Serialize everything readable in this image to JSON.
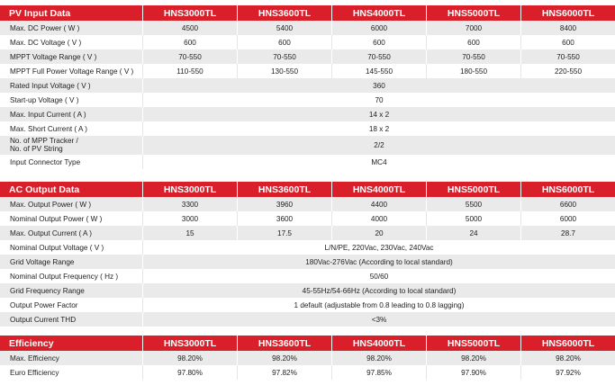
{
  "pv_input": {
    "title": "PV Input Data",
    "models": [
      "HNS3000TL",
      "HNS3600TL",
      "HNS4000TL",
      "HNS5000TL",
      "HNS6000TL"
    ],
    "rows": [
      {
        "label": "Max. DC Power ( W )",
        "values": [
          "4500",
          "5400",
          "6000",
          "7000",
          "8400"
        ]
      },
      {
        "label": "Max. DC Voltage ( V )",
        "values": [
          "600",
          "600",
          "600",
          "600",
          "600"
        ]
      },
      {
        "label": "MPPT Voltage Range ( V )",
        "values": [
          "70-550",
          "70-550",
          "70-550",
          "70-550",
          "70-550"
        ]
      },
      {
        "label": "MPPT Full Power Voltage Range ( V )",
        "values": [
          "110-550",
          "130-550",
          "145-550",
          "180-550",
          "220-550"
        ]
      },
      {
        "label": "Rated Input Voltage ( V )",
        "value": "360"
      },
      {
        "label": "Start-up Voltage ( V )",
        "value": "70"
      },
      {
        "label": "Max. Input Current ( A )",
        "value": "14 x 2"
      },
      {
        "label": "Max. Short Current ( A )",
        "value": "18 x 2"
      },
      {
        "label_line1": "No. of MPP Tracker /",
        "label_line2": "No. of PV String",
        "value": "2/2"
      },
      {
        "label": "Input Connector Type",
        "value": "MC4"
      }
    ]
  },
  "ac_output": {
    "title": "AC Output Data",
    "models": [
      "HNS3000TL",
      "HNS3600TL",
      "HNS4000TL",
      "HNS5000TL",
      "HNS6000TL"
    ],
    "rows": [
      {
        "label": "Max. Output Power ( W )",
        "values": [
          "3300",
          "3960",
          "4400",
          "5500",
          "6600"
        ]
      },
      {
        "label": "Nominal Output Power ( W )",
        "values": [
          "3000",
          "3600",
          "4000",
          "5000",
          "6000"
        ]
      },
      {
        "label": "Max. Output Current ( A )",
        "values": [
          "15",
          "17.5",
          "20",
          "24",
          "28.7"
        ]
      },
      {
        "label": "Nominal Output Voltage ( V )",
        "value": "L/N/PE, 220Vac, 230Vac, 240Vac"
      },
      {
        "label": "Grid Voltage Range",
        "value": "180Vac-276Vac (According to local standard)"
      },
      {
        "label": "Nominal Output Frequency ( Hz )",
        "value": "50/60"
      },
      {
        "label": "Grid Frequency Range",
        "value": "45-55Hz/54-66Hz (According to local standard)"
      },
      {
        "label": "Output Power Factor",
        "value": "1 default (adjustable from 0.8 leading to 0.8 lagging)"
      },
      {
        "label": "Output Current THD",
        "value": "<3%"
      }
    ]
  },
  "efficiency": {
    "title": "Efficiency",
    "models": [
      "HNS3000TL",
      "HNS3600TL",
      "HNS4000TL",
      "HNS5000TL",
      "HNS6000TL"
    ],
    "rows": [
      {
        "label": "Max. Efficiency",
        "values": [
          "98.20%",
          "98.20%",
          "98.20%",
          "98.20%",
          "98.20%"
        ]
      },
      {
        "label": "Euro Efficiency",
        "values": [
          "97.80%",
          "97.82%",
          "97.85%",
          "97.90%",
          "97.92%"
        ]
      }
    ]
  }
}
